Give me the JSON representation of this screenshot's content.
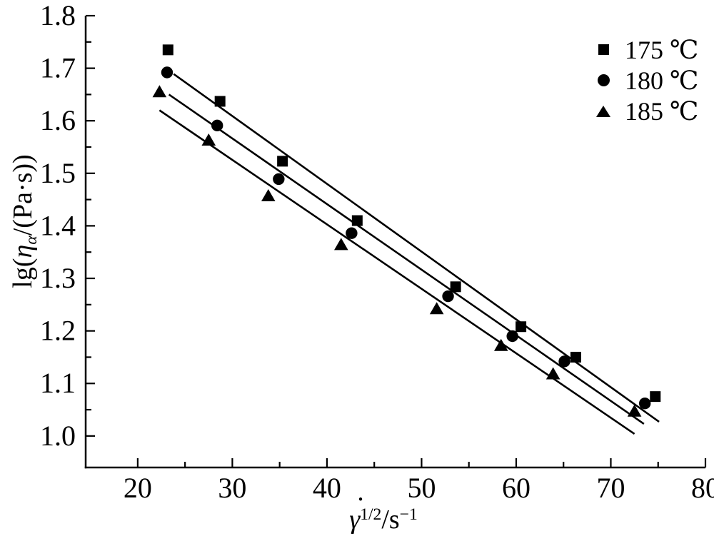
{
  "chart_data": {
    "type": "scatter",
    "title": "",
    "xlabel_parts": {
      "gamma": "γ",
      "dot": "˙",
      "sup1": "1/2",
      "slash_s": "/s",
      "sup2": "−1"
    },
    "ylabel_parts": {
      "pre": "lg(",
      "eta": "η",
      "sub": "α",
      "post": "/(Pa·s))"
    },
    "xlim": [
      14.5,
      80
    ],
    "ylim": [
      0.94,
      1.8
    ],
    "x_major_ticks": [
      20,
      30,
      40,
      50,
      60,
      70,
      80
    ],
    "x_minor_ticks": [
      25,
      35,
      45,
      55,
      65,
      75
    ],
    "y_major_ticks": [
      1.0,
      1.1,
      1.2,
      1.3,
      1.4,
      1.5,
      1.6,
      1.7,
      1.8
    ],
    "y_minor_ticks": [
      1.05,
      1.15,
      1.25,
      1.35,
      1.45,
      1.55,
      1.65,
      1.75
    ],
    "grid": false,
    "legend_position": "top-right",
    "axis_color": "#000000",
    "background_color": "#ffffff",
    "series": [
      {
        "name": "175 ℃",
        "marker": "square",
        "color": "#000000",
        "points": [
          [
            23.2,
            1.735
          ],
          [
            28.7,
            1.637
          ],
          [
            35.3,
            1.523
          ],
          [
            43.2,
            1.41
          ],
          [
            53.6,
            1.284
          ],
          [
            60.5,
            1.208
          ],
          [
            66.3,
            1.15
          ],
          [
            74.7,
            1.075
          ]
        ],
        "fit_line": {
          "x": [
            23.8,
            75.1
          ],
          "y": [
            1.689,
            1.027
          ]
        }
      },
      {
        "name": "180 ℃",
        "marker": "circle",
        "color": "#000000",
        "points": [
          [
            23.1,
            1.692
          ],
          [
            28.4,
            1.591
          ],
          [
            34.9,
            1.489
          ],
          [
            42.6,
            1.386
          ],
          [
            52.8,
            1.266
          ],
          [
            59.6,
            1.19
          ],
          [
            65.1,
            1.142
          ],
          [
            73.6,
            1.062
          ]
        ],
        "fit_line": {
          "x": [
            23.3,
            73.5
          ],
          "y": [
            1.65,
            1.023
          ]
        }
      },
      {
        "name": "185 ℃",
        "marker": "triangle",
        "color": "#000000",
        "points": [
          [
            22.3,
            1.655
          ],
          [
            27.5,
            1.563
          ],
          [
            33.8,
            1.457
          ],
          [
            41.5,
            1.364
          ],
          [
            51.6,
            1.242
          ],
          [
            58.4,
            1.172
          ],
          [
            63.9,
            1.118
          ],
          [
            72.5,
            1.047
          ]
        ],
        "fit_line": {
          "x": [
            22.3,
            72.5
          ],
          "y": [
            1.62,
            1.004
          ]
        }
      }
    ]
  }
}
